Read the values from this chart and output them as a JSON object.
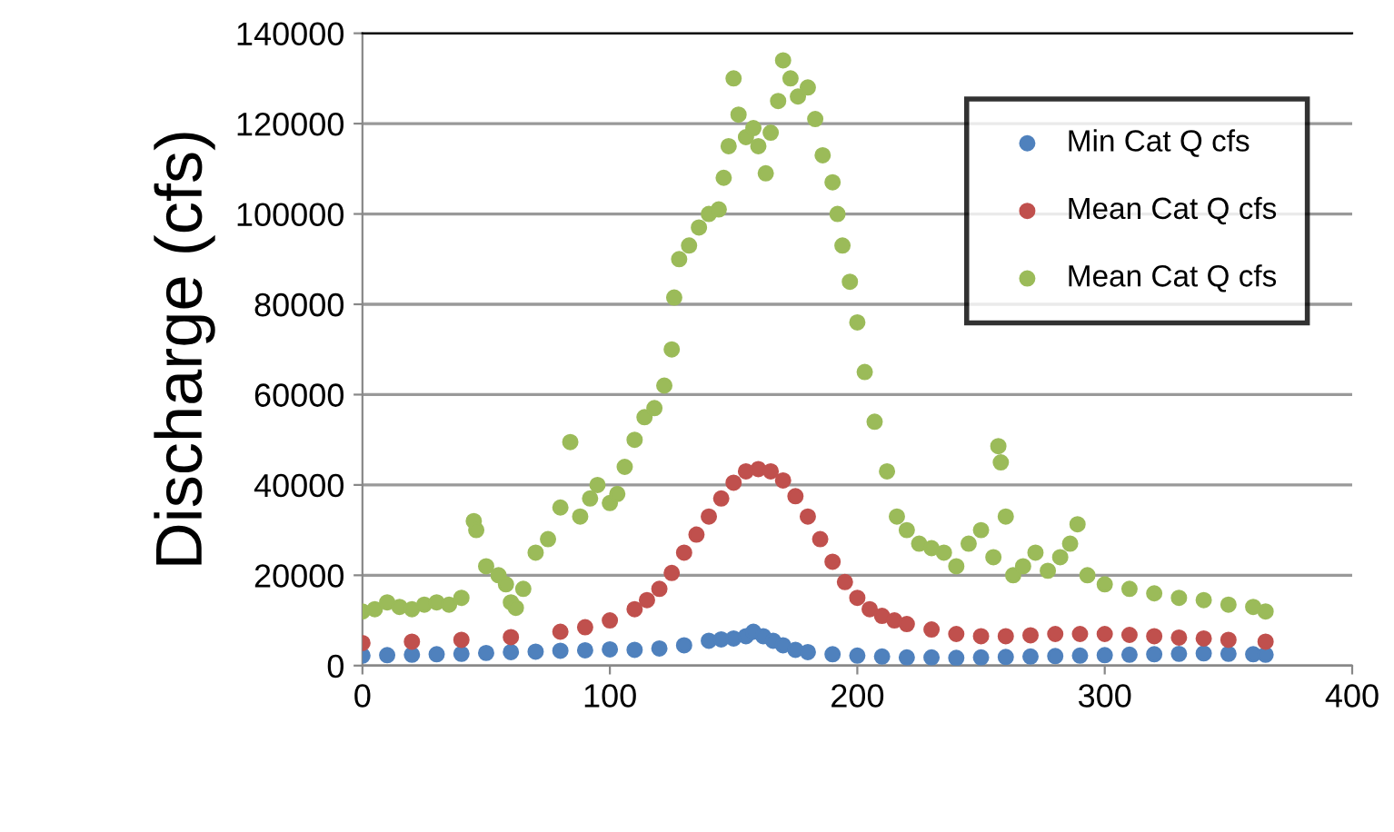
{
  "chart_data": {
    "type": "scatter",
    "ylabel": "Discharge (cfs)",
    "xlim": [
      0,
      400
    ],
    "xticks": [
      0,
      100,
      200,
      300,
      400
    ],
    "ylim": [
      0,
      140000
    ],
    "yticks": [
      0,
      20000,
      40000,
      60000,
      80000,
      100000,
      120000,
      140000
    ],
    "grid": "y",
    "legend": "top right",
    "marker": "circle",
    "series": [
      {
        "name": "Min Cat Q cfs",
        "color": "#4f81bd",
        "x": [
          0,
          10,
          20,
          30,
          40,
          50,
          60,
          70,
          80,
          90,
          100,
          110,
          120,
          130,
          140,
          145,
          150,
          155,
          158,
          162,
          166,
          170,
          175,
          180,
          190,
          200,
          210,
          220,
          230,
          240,
          250,
          260,
          270,
          280,
          290,
          300,
          310,
          320,
          330,
          340,
          350,
          360,
          365
        ],
        "values": [
          2200,
          2300,
          2400,
          2500,
          2600,
          2800,
          3000,
          3100,
          3300,
          3400,
          3600,
          3500,
          3800,
          4500,
          5500,
          5800,
          6000,
          6500,
          7500,
          6500,
          5500,
          4500,
          3500,
          3000,
          2500,
          2200,
          2000,
          1800,
          1800,
          1700,
          1800,
          1900,
          2000,
          2100,
          2200,
          2300,
          2400,
          2500,
          2600,
          2700,
          2600,
          2500,
          2400
        ]
      },
      {
        "name": "Mean Cat Q cfs",
        "color": "#c0504d",
        "x": [
          0,
          20,
          40,
          60,
          80,
          90,
          100,
          110,
          115,
          120,
          125,
          130,
          135,
          140,
          145,
          150,
          155,
          160,
          165,
          170,
          175,
          180,
          185,
          190,
          195,
          200,
          205,
          210,
          215,
          220,
          230,
          240,
          250,
          260,
          270,
          280,
          290,
          300,
          310,
          320,
          330,
          340,
          350,
          365
        ],
        "values": [
          5000,
          5300,
          5700,
          6300,
          7500,
          8500,
          10000,
          12500,
          14500,
          17000,
          20500,
          25000,
          29000,
          33000,
          37000,
          40500,
          43000,
          43500,
          43000,
          41000,
          37500,
          33000,
          28000,
          23000,
          18500,
          15000,
          12500,
          11000,
          10000,
          9200,
          8000,
          7000,
          6500,
          6500,
          6700,
          7000,
          7000,
          7000,
          6800,
          6500,
          6200,
          6000,
          5700,
          5300
        ]
      },
      {
        "name": "Mean Cat Q cfs",
        "color": "#9bbb59",
        "x": [
          0,
          5,
          10,
          15,
          20,
          25,
          30,
          35,
          40,
          45,
          46,
          50,
          55,
          58,
          60,
          62,
          65,
          70,
          75,
          80,
          84,
          88,
          92,
          95,
          100,
          103,
          106,
          110,
          114,
          118,
          122,
          125,
          126,
          128,
          132,
          136,
          140,
          144,
          146,
          148,
          150,
          152,
          155,
          158,
          160,
          163,
          165,
          168,
          170,
          173,
          176,
          180,
          183,
          186,
          190,
          192,
          194,
          197,
          200,
          203,
          207,
          212,
          216,
          220,
          225,
          230,
          235,
          240,
          245,
          250,
          255,
          257,
          258,
          260,
          263,
          267,
          272,
          277,
          282,
          286,
          289,
          293,
          300,
          310,
          320,
          330,
          340,
          350,
          360,
          365
        ],
        "values": [
          12000,
          12500,
          14000,
          13000,
          12500,
          13500,
          14000,
          13500,
          15000,
          32000,
          30000,
          22000,
          20000,
          18000,
          14000,
          12800,
          17000,
          25000,
          28000,
          35000,
          49500,
          33000,
          37000,
          40000,
          36000,
          38000,
          44000,
          50000,
          55000,
          57000,
          62000,
          70000,
          81500,
          90000,
          93000,
          97000,
          100000,
          101000,
          108000,
          115000,
          130000,
          122000,
          117000,
          119000,
          115000,
          109000,
          118000,
          125000,
          134000,
          130000,
          126000,
          128000,
          121000,
          113000,
          107000,
          100000,
          93000,
          85000,
          76000,
          65000,
          54000,
          43000,
          33000,
          30000,
          27000,
          26000,
          25000,
          22000,
          27000,
          30000,
          24000,
          48600,
          45000,
          33000,
          20000,
          22000,
          25000,
          21000,
          24000,
          27000,
          31300,
          20000,
          18000,
          17000,
          16000,
          15000,
          14500,
          13500,
          13000,
          12000
        ]
      }
    ]
  }
}
